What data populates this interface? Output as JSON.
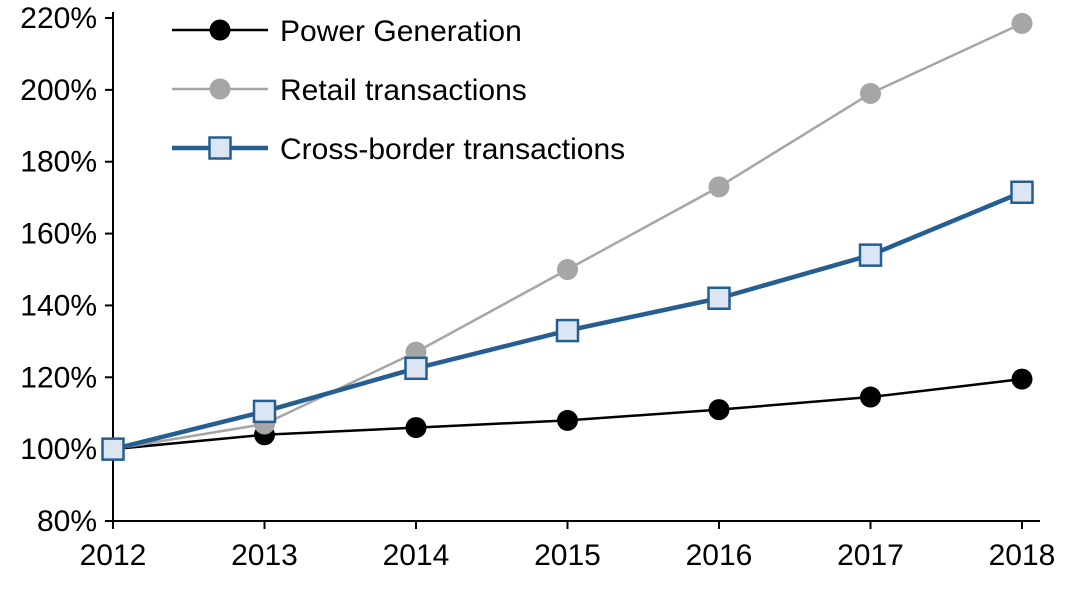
{
  "chart_data": {
    "type": "line",
    "title": "",
    "xlabel": "",
    "ylabel": "",
    "x": [
      "2012",
      "2013",
      "2014",
      "2015",
      "2016",
      "2017",
      "2018"
    ],
    "ylim": [
      80,
      220
    ],
    "ytick_step": 20,
    "ytick_labels": [
      "80%",
      "100%",
      "120%",
      "140%",
      "160%",
      "180%",
      "200%",
      "220%"
    ],
    "grid": false,
    "legend_position": "top-left",
    "axis_color": "#000000",
    "series": [
      {
        "name": "Power Generation",
        "color": "#000000",
        "marker": "circle",
        "marker_fill": "#000000",
        "line_width": 2.5,
        "values": [
          100,
          104,
          106,
          108,
          111,
          114.5,
          119.5
        ]
      },
      {
        "name": "Retail transactions",
        "color": "#A6A6A6",
        "marker": "circle",
        "marker_fill": "#A6A6A6",
        "line_width": 2.5,
        "values": [
          100,
          107,
          127,
          150,
          173,
          199,
          218.5
        ]
      },
      {
        "name": "Cross-border transactions",
        "color": "#255E91",
        "marker": "square",
        "marker_fill": "#DCE6F2",
        "line_width": 4.5,
        "values": [
          100,
          110.5,
          122.5,
          133,
          142,
          154,
          171.5
        ]
      }
    ]
  }
}
